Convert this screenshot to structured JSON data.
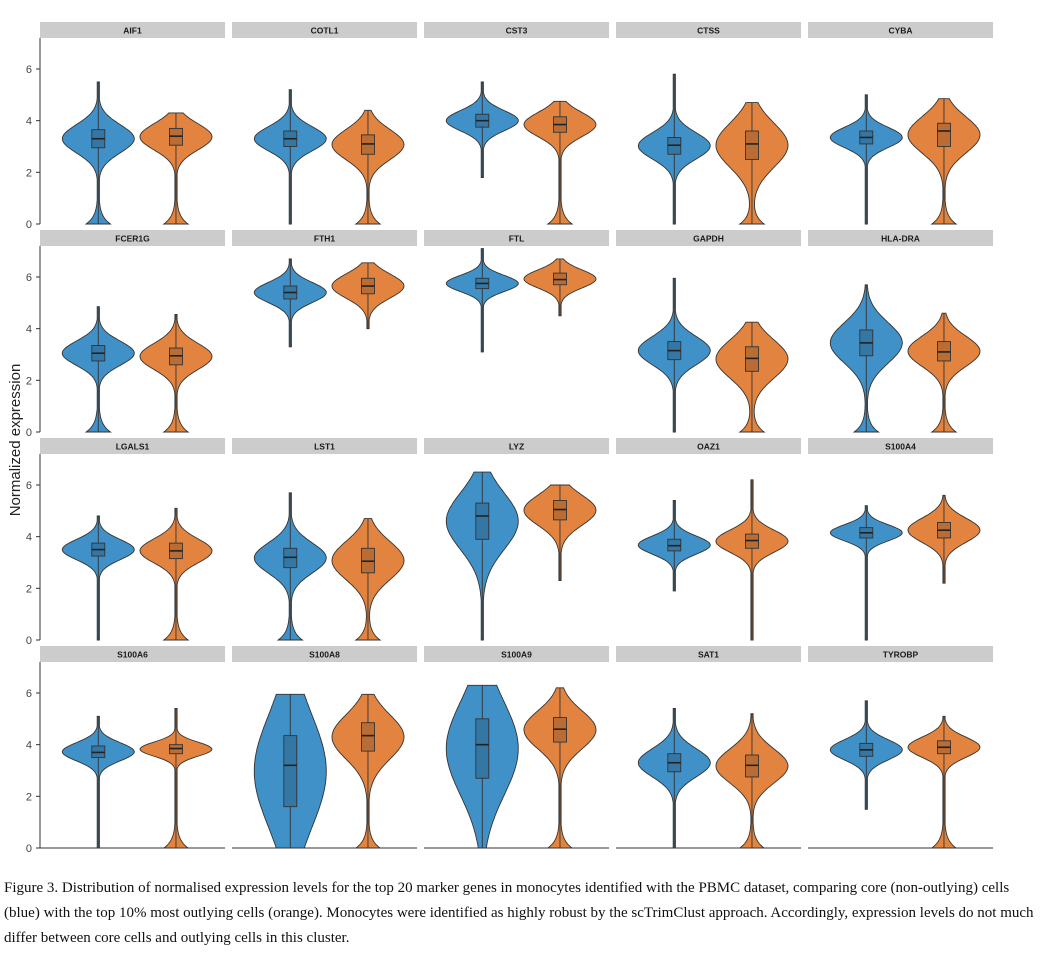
{
  "chart_data": {
    "type": "violin",
    "ylabel": "Normalized expression",
    "ylim": [
      0,
      7.2
    ],
    "yticks": [
      0,
      2,
      4,
      6
    ],
    "series_colors": {
      "core": "#3f91c8",
      "outlying": "#e2843f"
    },
    "panels": [
      {
        "gene": "AIF1",
        "core": {
          "min": 0,
          "q1": 2.95,
          "median": 3.3,
          "q3": 3.65,
          "max": 5.5,
          "tail": true
        },
        "outlying": {
          "min": 0,
          "q1": 3.05,
          "median": 3.4,
          "q3": 3.7,
          "max": 4.3,
          "tail": true
        }
      },
      {
        "gene": "COTL1",
        "core": {
          "min": 0,
          "q1": 3.0,
          "median": 3.3,
          "q3": 3.6,
          "max": 5.2,
          "tail": false
        },
        "outlying": {
          "min": 0,
          "q1": 2.7,
          "median": 3.1,
          "q3": 3.45,
          "max": 4.4,
          "tail": true
        }
      },
      {
        "gene": "CST3",
        "core": {
          "min": 1.8,
          "q1": 3.75,
          "median": 4.0,
          "q3": 4.25,
          "max": 5.5,
          "tail": false
        },
        "outlying": {
          "min": 0,
          "q1": 3.55,
          "median": 3.85,
          "q3": 4.15,
          "max": 4.75,
          "tail": true
        }
      },
      {
        "gene": "CTSS",
        "core": {
          "min": 0,
          "q1": 2.7,
          "median": 3.05,
          "q3": 3.35,
          "max": 5.8,
          "tail": false
        },
        "outlying": {
          "min": 0,
          "q1": 2.5,
          "median": 3.1,
          "q3": 3.6,
          "max": 4.7,
          "tail": true
        }
      },
      {
        "gene": "CYBA",
        "core": {
          "min": 0,
          "q1": 3.1,
          "median": 3.35,
          "q3": 3.6,
          "max": 5.0,
          "tail": false
        },
        "outlying": {
          "min": 0,
          "q1": 3.0,
          "median": 3.6,
          "q3": 3.9,
          "max": 4.85,
          "tail": true
        }
      },
      {
        "gene": "FCER1G",
        "core": {
          "min": 0,
          "q1": 2.75,
          "median": 3.05,
          "q3": 3.35,
          "max": 4.85,
          "tail": true
        },
        "outlying": {
          "min": 0,
          "q1": 2.6,
          "median": 2.95,
          "q3": 3.25,
          "max": 4.55,
          "tail": true
        }
      },
      {
        "gene": "FTH1",
        "core": {
          "min": 3.3,
          "q1": 5.15,
          "median": 5.4,
          "q3": 5.65,
          "max": 6.7,
          "tail": false
        },
        "outlying": {
          "min": 4.0,
          "q1": 5.35,
          "median": 5.65,
          "q3": 5.95,
          "max": 6.55,
          "tail": false
        }
      },
      {
        "gene": "FTL",
        "core": {
          "min": 3.1,
          "q1": 5.55,
          "median": 5.75,
          "q3": 5.95,
          "max": 7.1,
          "tail": false
        },
        "outlying": {
          "min": 4.5,
          "q1": 5.7,
          "median": 5.9,
          "q3": 6.15,
          "max": 6.7,
          "tail": false
        }
      },
      {
        "gene": "GAPDH",
        "core": {
          "min": 0,
          "q1": 2.8,
          "median": 3.15,
          "q3": 3.5,
          "max": 5.95,
          "tail": false
        },
        "outlying": {
          "min": 0,
          "q1": 2.35,
          "median": 2.85,
          "q3": 3.3,
          "max": 4.25,
          "tail": true
        }
      },
      {
        "gene": "HLA-DRA",
        "core": {
          "min": 0,
          "q1": 2.95,
          "median": 3.45,
          "q3": 3.95,
          "max": 5.7,
          "tail": true
        },
        "outlying": {
          "min": 0,
          "q1": 2.75,
          "median": 3.1,
          "q3": 3.5,
          "max": 4.6,
          "tail": true
        }
      },
      {
        "gene": "LGALS1",
        "core": {
          "min": 0,
          "q1": 3.25,
          "median": 3.5,
          "q3": 3.75,
          "max": 4.8,
          "tail": false
        },
        "outlying": {
          "min": 0,
          "q1": 3.15,
          "median": 3.45,
          "q3": 3.75,
          "max": 5.1,
          "tail": true
        }
      },
      {
        "gene": "LST1",
        "core": {
          "min": 0,
          "q1": 2.8,
          "median": 3.2,
          "q3": 3.55,
          "max": 5.7,
          "tail": true
        },
        "outlying": {
          "min": 0,
          "q1": 2.6,
          "median": 3.05,
          "q3": 3.55,
          "max": 4.7,
          "tail": true
        }
      },
      {
        "gene": "LYZ",
        "core": {
          "min": 0,
          "q1": 3.9,
          "median": 4.8,
          "q3": 5.3,
          "max": 6.5,
          "tail": false
        },
        "outlying": {
          "min": 2.3,
          "q1": 4.65,
          "median": 5.05,
          "q3": 5.4,
          "max": 6.0,
          "tail": false
        }
      },
      {
        "gene": "OAZ1",
        "core": {
          "min": 1.9,
          "q1": 3.45,
          "median": 3.65,
          "q3": 3.9,
          "max": 5.4,
          "tail": false
        },
        "outlying": {
          "min": 0,
          "q1": 3.55,
          "median": 3.85,
          "q3": 4.1,
          "max": 6.2,
          "tail": false
        }
      },
      {
        "gene": "S100A4",
        "core": {
          "min": 0,
          "q1": 3.95,
          "median": 4.15,
          "q3": 4.35,
          "max": 5.2,
          "tail": false
        },
        "outlying": {
          "min": 2.2,
          "q1": 3.95,
          "median": 4.25,
          "q3": 4.55,
          "max": 5.6,
          "tail": false
        }
      },
      {
        "gene": "S100A6",
        "core": {
          "min": 0,
          "q1": 3.5,
          "median": 3.7,
          "q3": 3.95,
          "max": 5.1,
          "tail": false
        },
        "outlying": {
          "min": 0,
          "q1": 3.65,
          "median": 3.85,
          "q3": 4.0,
          "max": 5.4,
          "tail": true
        }
      },
      {
        "gene": "S100A8",
        "core": {
          "min": 0,
          "q1": 1.6,
          "median": 3.2,
          "q3": 4.35,
          "max": 5.95,
          "tail": false
        },
        "outlying": {
          "min": 0,
          "q1": 3.75,
          "median": 4.35,
          "q3": 4.85,
          "max": 5.95,
          "tail": true
        }
      },
      {
        "gene": "S100A9",
        "core": {
          "min": 0,
          "q1": 2.7,
          "median": 4.0,
          "q3": 5.0,
          "max": 6.3,
          "tail": false
        },
        "outlying": {
          "min": 0,
          "q1": 4.1,
          "median": 4.6,
          "q3": 5.05,
          "max": 6.2,
          "tail": true
        }
      },
      {
        "gene": "SAT1",
        "core": {
          "min": 0,
          "q1": 2.95,
          "median": 3.3,
          "q3": 3.65,
          "max": 5.4,
          "tail": false
        },
        "outlying": {
          "min": 0,
          "q1": 2.75,
          "median": 3.2,
          "q3": 3.6,
          "max": 5.2,
          "tail": true
        }
      },
      {
        "gene": "TYROBP",
        "core": {
          "min": 1.5,
          "q1": 3.55,
          "median": 3.8,
          "q3": 4.05,
          "max": 5.7,
          "tail": false
        },
        "outlying": {
          "min": 0,
          "q1": 3.65,
          "median": 3.9,
          "q3": 4.15,
          "max": 5.1,
          "tail": true
        }
      }
    ]
  },
  "caption": "Figure 3. Distribution of normalised expression levels for the top 20 marker genes in monocytes identified with the PBMC dataset, comparing core (non-outlying) cells (blue) with the top 10% most outlying cells (orange). Monocytes were identified as highly robust by the scTrimClust approach. Accordingly, expression levels do not much differ between core cells and outlying cells in this cluster."
}
